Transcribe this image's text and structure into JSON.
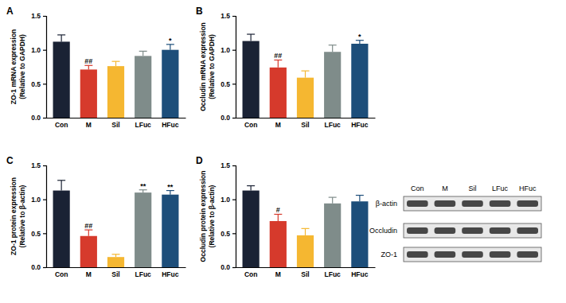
{
  "chart_data": [
    {
      "type": "bar",
      "title": "A",
      "y_label": [
        "ZO-1 mRNA expression",
        "(Relative to GAPDH)"
      ],
      "categories": [
        "Con",
        "M",
        "Sil",
        "LFuc",
        "HFuc"
      ],
      "series": [
        {
          "values": [
            1.12,
            0.71,
            0.76,
            0.91,
            1.0
          ],
          "errors": [
            0.1,
            0.06,
            0.07,
            0.07,
            0.08
          ],
          "colors": [
            "#1a2234",
            "#d63a2c",
            "#f5b731",
            "#7f8c8a",
            "#1d4e7a"
          ]
        }
      ],
      "annotations": [
        {
          "category": "M",
          "text": "##"
        },
        {
          "category": "HFuc",
          "text": "*"
        }
      ],
      "ylim": [
        0,
        1.5
      ],
      "yticks": [
        {
          "value": 0,
          "label": "0.0"
        },
        0.5,
        {
          "value": 1,
          "label": "1.0"
        },
        1.5
      ]
    },
    {
      "type": "bar",
      "title": "B",
      "y_label": [
        "Occludin mRNA expression",
        "(Relative to GAPDH)"
      ],
      "categories": [
        "Con",
        "M",
        "Sil",
        "LFuc",
        "HFuc"
      ],
      "series": [
        {
          "values": [
            1.13,
            0.74,
            0.59,
            0.97,
            1.09
          ],
          "errors": [
            0.1,
            0.11,
            0.1,
            0.1,
            0.05
          ],
          "colors": [
            "#1a2234",
            "#d63a2c",
            "#f5b731",
            "#7f8c8a",
            "#1d4e7a"
          ]
        }
      ],
      "annotations": [
        {
          "category": "M",
          "text": "##"
        },
        {
          "category": "HFuc",
          "text": "*"
        }
      ],
      "ylim": [
        0,
        1.5
      ],
      "yticks": [
        {
          "value": 0,
          "label": "0.0"
        },
        0.5,
        {
          "value": 1,
          "label": "1.0"
        },
        1.5
      ]
    },
    {
      "type": "bar",
      "title": "C",
      "y_label": [
        "ZO-1 protein expression",
        "(Relative to β-actin)"
      ],
      "categories": [
        "Con",
        "M",
        "Sil",
        "LFuc",
        "HFuc"
      ],
      "series": [
        {
          "values": [
            1.13,
            0.46,
            0.15,
            1.1,
            1.07
          ],
          "errors": [
            0.15,
            0.09,
            0.04,
            0.04,
            0.06
          ],
          "colors": [
            "#1a2234",
            "#d63a2c",
            "#f5b731",
            "#7f8c8a",
            "#1d4e7a"
          ]
        }
      ],
      "annotations": [
        {
          "category": "M",
          "text": "##"
        },
        {
          "category": "LFuc",
          "text": "**"
        },
        {
          "category": "HFuc",
          "text": "**"
        }
      ],
      "ylim": [
        0,
        1.5
      ],
      "yticks": [
        {
          "value": 0,
          "label": "0.0"
        },
        0.5,
        {
          "value": 1,
          "label": "1.0"
        },
        1.5
      ]
    },
    {
      "type": "bar",
      "title": "D",
      "y_label": [
        "Occludin protein expression",
        "(Relative to β-actin)"
      ],
      "categories": [
        "Con",
        "M",
        "Sil",
        "LFuc",
        "HFuc"
      ],
      "series": [
        {
          "values": [
            1.13,
            0.68,
            0.47,
            0.94,
            0.97
          ],
          "errors": [
            0.07,
            0.1,
            0.1,
            0.09,
            0.09
          ],
          "colors": [
            "#1a2234",
            "#d63a2c",
            "#f5b731",
            "#7f8c8a",
            "#1d4e7a"
          ]
        }
      ],
      "annotations": [
        {
          "category": "M",
          "text": "#"
        }
      ],
      "ylim": [
        0,
        1.5
      ],
      "yticks": [
        {
          "value": 0,
          "label": "0.0"
        },
        0.5,
        {
          "value": 1,
          "label": "1.0"
        },
        1.5
      ]
    }
  ],
  "blot": {
    "lanes": [
      "Con",
      "M",
      "Sil",
      "LFuc",
      "HFuc"
    ],
    "rows": [
      "β-actin",
      "Occludin",
      "ZO-1"
    ]
  }
}
